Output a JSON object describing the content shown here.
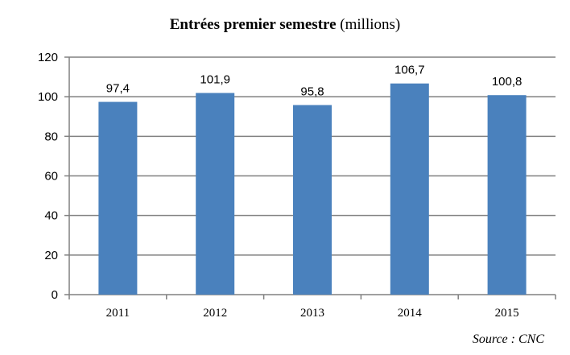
{
  "title": {
    "bold": "Entrées premier semestre",
    "normal": "(millions)"
  },
  "source": "Source : CNC",
  "colors": {
    "bar": "#4a81bd",
    "grid": "#808080",
    "axis": "#808080"
  },
  "chart_data": {
    "type": "bar",
    "title": "Entrées premier semestre (millions)",
    "categories": [
      "2011",
      "2012",
      "2013",
      "2014",
      "2015"
    ],
    "values": [
      97.4,
      101.9,
      95.8,
      106.7,
      100.8
    ],
    "value_labels": [
      "97,4",
      "101,9",
      "95,8",
      "106,7",
      "100,8"
    ],
    "yticks": [
      0,
      20,
      40,
      60,
      80,
      100,
      120
    ],
    "ylim": [
      0,
      120
    ],
    "xlabel": "",
    "ylabel": "",
    "grid": true
  }
}
